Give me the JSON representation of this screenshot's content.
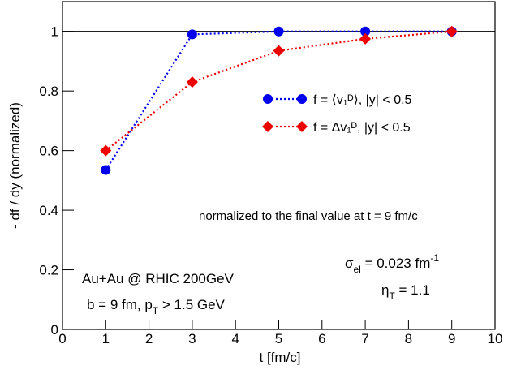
{
  "chart_data": {
    "type": "line",
    "xlabel": "t  [fm/c]",
    "ylabel": "- df / dy  (normalized)",
    "x": [
      1,
      3,
      5,
      7,
      9
    ],
    "series": [
      {
        "name": "f = ⟨v₁ᴰ⟩,  |y| < 0.5",
        "color": "#0000ee",
        "marker": "circle",
        "values": [
          0.535,
          0.99,
          1.0,
          1.0,
          1.0
        ]
      },
      {
        "name": "f = Δv₁ᴰ,  |y| < 0.5",
        "color": "#ee0000",
        "marker": "diamond",
        "values": [
          0.6,
          0.83,
          0.935,
          0.975,
          1.0
        ]
      }
    ],
    "xlim": [
      0,
      10
    ],
    "ylim": [
      0,
      1.1
    ],
    "xticks": [
      0,
      1,
      2,
      3,
      4,
      5,
      6,
      7,
      8,
      9,
      10
    ],
    "yticks": [
      0,
      0.2,
      0.4,
      0.6,
      0.8,
      1
    ],
    "reference_line": 1,
    "annotations": {
      "note": "normalized to the final value at t = 9 fm/c",
      "sigma": [
        "σ",
        "el",
        " = 0.023 fm",
        "-1"
      ],
      "eta": [
        "η",
        "T",
        " = 1.1"
      ],
      "system": "Au+Au @ RHIC 200GeV",
      "cuts": [
        "b = 9 fm,  p",
        "T",
        " > 1.5 GeV"
      ]
    }
  }
}
